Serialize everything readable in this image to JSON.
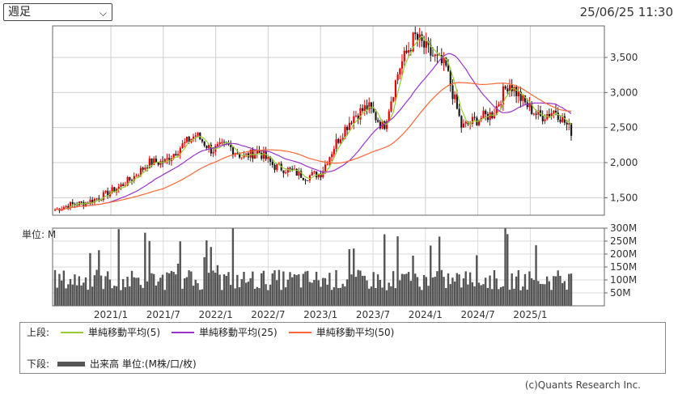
{
  "controls": {
    "period_value": "週足",
    "chevron_icon": "chevron-down-icon"
  },
  "timestamp": "25/06/25 11:30",
  "legend": {
    "upper_label": "上段:",
    "lower_label": "下段:",
    "items": [
      {
        "label": "単純移動平均(5)",
        "color": "#99cc33"
      },
      {
        "label": "単純移動平均(25)",
        "color": "#9933cc"
      },
      {
        "label": "単純移動平均(50)",
        "color": "#ff6633"
      }
    ],
    "volume_label": "出来高 単位:(M株/口/枚)"
  },
  "copyright": "(c)Quants Research Inc.",
  "chart_data": [
    {
      "type": "candlestick",
      "y_ticks": [
        "3,500",
        "3,000",
        "2,500",
        "2,000",
        "1,500"
      ],
      "ylim": [
        1250,
        3950
      ],
      "x_labels": [
        "2021/1",
        "2021/7",
        "2022/1",
        "2022/7",
        "2023/1",
        "2023/7",
        "2024/1",
        "2024/7",
        "2025/1"
      ],
      "colors": {
        "up": "#e60000",
        "down": "#1a1a1a",
        "ma5": "#99cc33",
        "ma25": "#9933cc",
        "ma50": "#ff6633"
      },
      "close_path": [
        1330,
        1400,
        1430,
        1520,
        1640,
        1790,
        2000,
        2010,
        2220,
        2400,
        2180,
        2250,
        2080,
        2160,
        1950,
        1890,
        1800,
        1850,
        2300,
        2650,
        2800,
        2500,
        3350,
        3800,
        3550,
        3350,
        2500,
        2620,
        2700,
        3150,
        2850,
        2650,
        2750,
        2450
      ]
    },
    {
      "type": "bar",
      "series": "volume",
      "y_ticks": [
        "300M",
        "250M",
        "200M",
        "150M",
        "100M",
        "50M"
      ],
      "ylim": [
        0,
        300
      ],
      "unit_label": "単位: M"
    }
  ]
}
